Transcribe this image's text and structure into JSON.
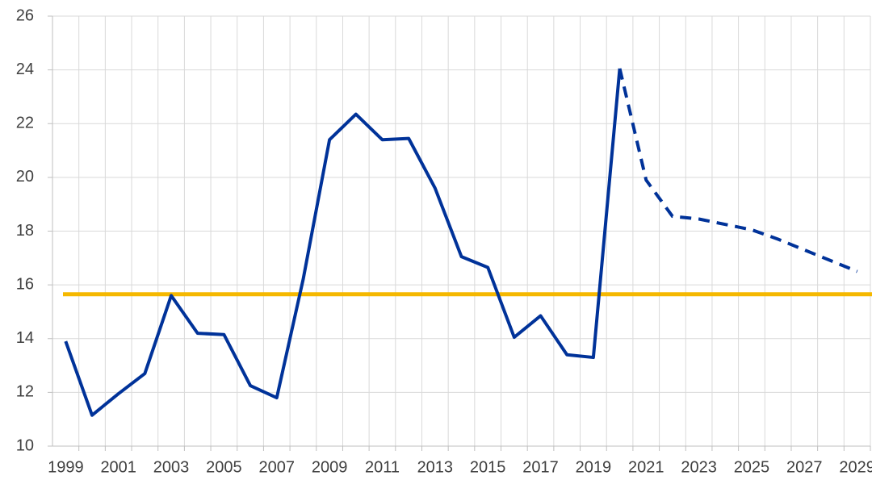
{
  "chart_data": {
    "type": "line",
    "categories": [
      "1999",
      null,
      "2001",
      null,
      "2003",
      null,
      "2005",
      null,
      "2007",
      null,
      "2009",
      null,
      "2011",
      null,
      "2013",
      null,
      "2015",
      null,
      "2017",
      null,
      "2019",
      null,
      "2021",
      null,
      "2023",
      null,
      "2025",
      null,
      "2027",
      null,
      "2029"
    ],
    "series": [
      {
        "color": "#003299",
        "dashed": false,
        "values": [
          13.9,
          11.15,
          11.95,
          12.7,
          15.6,
          14.2,
          14.15,
          12.25,
          11.8,
          16.2,
          21.4,
          22.35,
          21.4,
          21.45,
          19.6,
          17.05,
          16.65,
          14.05,
          14.85,
          13.4,
          13.3,
          24.05,
          null,
          null,
          null,
          null,
          null,
          null,
          null,
          null,
          null
        ]
      },
      {
        "color": "#003299",
        "dashed": true,
        "values": [
          null,
          null,
          null,
          null,
          null,
          null,
          null,
          null,
          null,
          null,
          null,
          null,
          null,
          null,
          null,
          null,
          null,
          null,
          null,
          null,
          null,
          24.05,
          19.9,
          18.55,
          18.45,
          18.25,
          18.05,
          17.7,
          17.3,
          16.9,
          16.5
        ]
      }
    ],
    "reference_line": {
      "value": 15.65,
      "color": "#f5b800"
    },
    "ylim": [
      10,
      26
    ],
    "yticks": [
      10,
      12,
      14,
      16,
      18,
      20,
      22,
      24,
      26
    ],
    "grid": true
  }
}
